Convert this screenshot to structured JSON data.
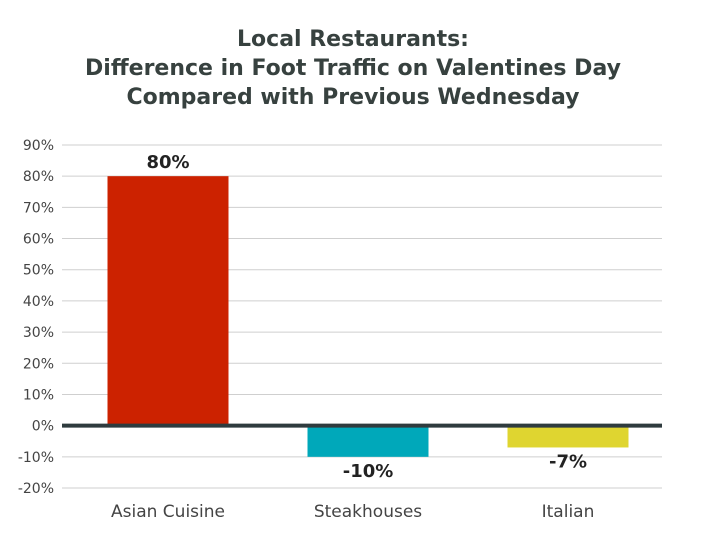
{
  "chart_data": {
    "type": "bar",
    "title_lines": [
      "Local Restaurants:",
      "Difference in Foot Traffic on Valentines Day",
      "Compared with Previous Wednesday"
    ],
    "categories": [
      "Asian Cuisine",
      "Steakhouses",
      "Italian"
    ],
    "values": [
      80,
      -10,
      -7
    ],
    "data_labels": [
      "80%",
      "-10%",
      "-7%"
    ],
    "colors": [
      "#cc2200",
      "#00a8ba",
      "#dfd530"
    ],
    "ylim": [
      -20,
      90
    ],
    "y_ticks": [
      90,
      80,
      70,
      60,
      50,
      40,
      30,
      20,
      10,
      0,
      -10,
      -20
    ],
    "y_tick_labels": [
      "90%",
      "80%",
      "70%",
      "60%",
      "50%",
      "40%",
      "30%",
      "20%",
      "10%",
      "0%",
      "-10%",
      "-20%"
    ],
    "grid": true,
    "legend": "none",
    "zero_line_color": "#2f3b3e"
  }
}
